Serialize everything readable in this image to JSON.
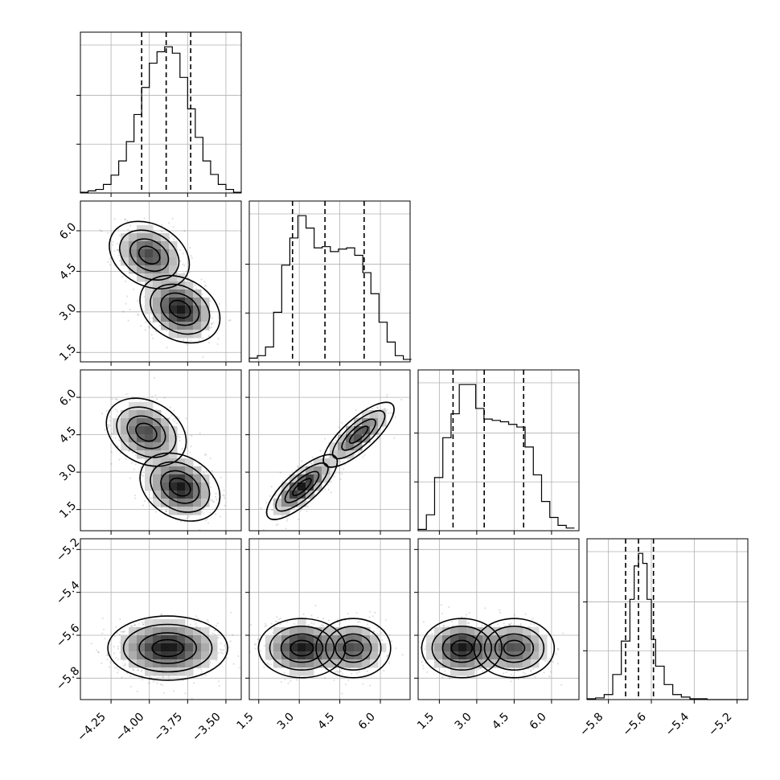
{
  "chart_data": {
    "type": "corner",
    "parameters": [
      {
        "range": [
          -4.45,
          -3.4
        ],
        "ticks": [
          -4.25,
          -4.0,
          -3.75,
          -3.5
        ],
        "tick_labels": [
          "−4.25",
          "−4.00",
          "−3.75",
          "−3.50"
        ]
      },
      {
        "range": [
          1.15,
          7.1
        ],
        "ticks": [
          1.5,
          3.0,
          4.5,
          6.0
        ],
        "tick_labels": [
          "1.5",
          "3.0",
          "4.5",
          "6.0"
        ]
      },
      {
        "range": [
          0.65,
          7.1
        ],
        "ticks": [
          1.5,
          3.0,
          4.5,
          6.0
        ],
        "tick_labels": [
          "1.5",
          "3.0",
          "4.5",
          "6.0"
        ]
      },
      {
        "range": [
          -5.9,
          -5.15
        ],
        "ticks": [
          -5.8,
          -5.6,
          -5.4,
          -5.2
        ],
        "tick_labels": [
          "−5.8",
          "−5.6",
          "−5.4",
          "−5.2"
        ]
      }
    ],
    "histograms": [
      {
        "edges": [
          -4.45,
          -4.4,
          -4.35,
          -4.3,
          -4.25,
          -4.2,
          -4.15,
          -4.1,
          -4.05,
          -4.0,
          -3.95,
          -3.9,
          -3.85,
          -3.8,
          -3.75,
          -3.7,
          -3.65,
          -3.6,
          -3.55,
          -3.5,
          -3.45,
          -3.4
        ],
        "counts": [
          1,
          3,
          5,
          12,
          25,
          45,
          72,
          110,
          148,
          182,
          198,
          205,
          196,
          162,
          118,
          78,
          45,
          26,
          12,
          5,
          1
        ],
        "quantiles": [
          -4.05,
          -3.89,
          -3.73
        ]
      },
      {
        "edges": [
          1.15,
          1.45,
          1.75,
          2.05,
          2.35,
          2.65,
          2.95,
          3.25,
          3.55,
          3.85,
          4.15,
          4.45,
          4.75,
          5.05,
          5.35,
          5.65,
          5.95,
          6.25,
          6.55,
          6.85,
          7.15
        ],
        "counts": [
          3,
          5,
          12,
          40,
          78,
          100,
          118,
          108,
          92,
          93,
          89,
          91,
          92,
          86,
          72,
          55,
          32,
          16,
          5,
          2
        ],
        "quantiles": [
          2.75,
          3.95,
          5.4
        ]
      },
      {
        "edges": [
          0.65,
          0.98,
          1.31,
          1.64,
          1.97,
          2.3,
          2.63,
          2.96,
          3.29,
          3.62,
          3.95,
          4.28,
          4.61,
          4.94,
          5.27,
          5.6,
          5.93,
          6.26,
          6.59,
          6.92
        ],
        "counts": [
          1,
          12,
          40,
          70,
          88,
          110,
          110,
          92,
          84,
          83,
          82,
          80,
          78,
          63,
          42,
          22,
          10,
          4,
          2
        ],
        "quantiles": [
          2.05,
          3.3,
          4.88
        ]
      },
      {
        "edges": [
          -5.9,
          -5.86,
          -5.82,
          -5.78,
          -5.74,
          -5.7,
          -5.68,
          -5.66,
          -5.64,
          -5.62,
          -5.6,
          -5.58,
          -5.54,
          -5.5,
          -5.46,
          -5.42,
          -5.38,
          -5.34,
          -5.3,
          -5.26,
          -5.22,
          -5.18,
          -5.15
        ],
        "counts": [
          1,
          2,
          6,
          30,
          70,
          120,
          160,
          175,
          163,
          120,
          72,
          40,
          18,
          6,
          3,
          1,
          1,
          0,
          0,
          0,
          0,
          0
        ],
        "quantiles": [
          -5.72,
          -5.66,
          -5.59
        ]
      }
    ],
    "correlations": [
      [
        0,
        0,
        0,
        0
      ],
      [
        -0.6,
        0,
        0,
        0
      ],
      [
        -0.55,
        0.88,
        0,
        0
      ],
      [
        0.05,
        0.05,
        0.05,
        0
      ]
    ],
    "grid": true
  }
}
